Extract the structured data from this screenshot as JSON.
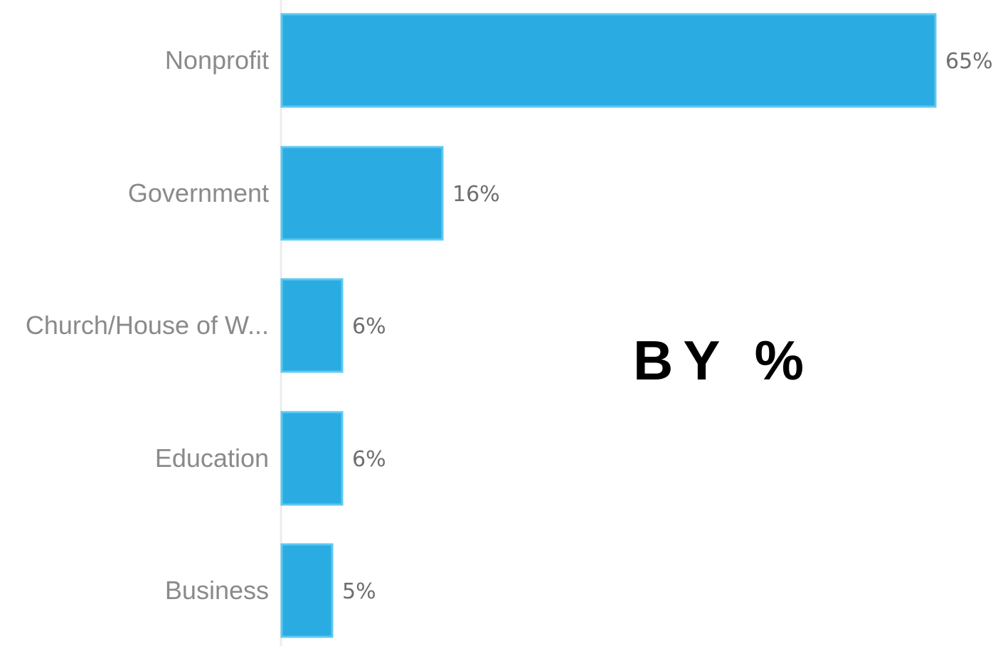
{
  "chart_data": {
    "type": "bar",
    "orientation": "horizontal",
    "categories": [
      "Nonprofit",
      "Government",
      "Church/House of W...",
      "Education",
      "Business"
    ],
    "values": [
      65,
      16,
      6,
      6,
      5
    ],
    "value_labels": [
      "65%",
      "16%",
      "6%",
      "6%",
      "5%"
    ],
    "unit": "%",
    "xlim": [
      0,
      65
    ],
    "grid": false,
    "title": "",
    "xlabel": "",
    "ylabel": ""
  },
  "overlay_text": "BY %",
  "colors": {
    "bar_fill": "#2aace2",
    "bar_stroke": "#5cc8f2",
    "axis": "#ececec",
    "category_text": "#8a8a8a",
    "value_text": "#6e6e6e",
    "overlay_text": "#000000"
  }
}
